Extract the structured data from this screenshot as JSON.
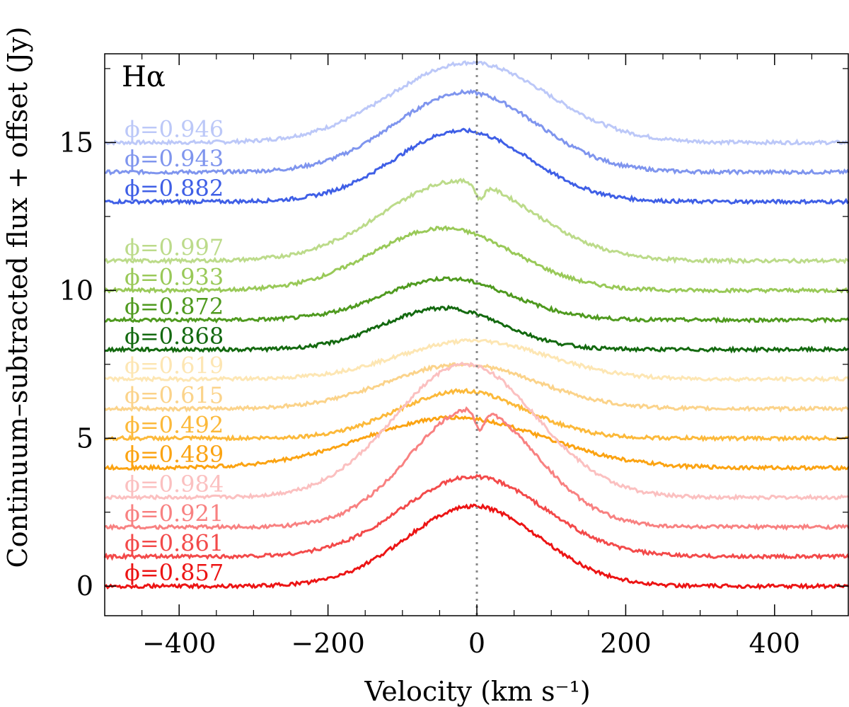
{
  "chart_data": {
    "type": "line",
    "panel_label": "Hα",
    "xlabel": "Velocity (km s⁻¹)",
    "ylabel": "Continuum–subtracted flux + offset (Jy)",
    "xlim": [
      -500,
      500
    ],
    "ylim": [
      -1,
      18
    ],
    "x_ticks": [
      -400,
      -200,
      0,
      200,
      400
    ],
    "x_tick_labels": [
      "−400",
      "−200",
      "0",
      "200",
      "400"
    ],
    "y_ticks": [
      0,
      5,
      10,
      15
    ],
    "y_tick_labels": [
      "0",
      "5",
      "10",
      "15"
    ],
    "reference_line": {
      "x": 0,
      "style": "dotted",
      "color": "#888888"
    },
    "grid": false,
    "series": [
      {
        "label": "ϕ=0.946",
        "color": "#bcc8f8",
        "offset": 15,
        "peak": 2.7,
        "center": -10,
        "sigma": 105,
        "wing": 0.0,
        "dip": 0.0
      },
      {
        "label": "ϕ=0.943",
        "color": "#7f95ee",
        "offset": 14,
        "peak": 2.7,
        "center": -15,
        "sigma": 95,
        "wing": 0.0,
        "dip": 0.0
      },
      {
        "label": "ϕ=0.882",
        "color": "#3f5fe6",
        "offset": 13,
        "peak": 2.4,
        "center": -20,
        "sigma": 90,
        "wing": 0.0,
        "dip": 0.0
      },
      {
        "label": "ϕ=0.997",
        "color": "#bcdb8a",
        "offset": 11,
        "peak": 2.7,
        "center": -25,
        "sigma": 100,
        "wing": 0.0,
        "dip": 0.5
      },
      {
        "label": "ϕ=0.933",
        "color": "#99c958",
        "offset": 10,
        "peak": 2.1,
        "center": -45,
        "sigma": 95,
        "wing": 0.0,
        "dip": 0.0
      },
      {
        "label": "ϕ=0.872",
        "color": "#4f9a1f",
        "offset": 9,
        "peak": 1.4,
        "center": -40,
        "sigma": 85,
        "wing": 0.0,
        "dip": 0.0
      },
      {
        "label": "ϕ=0.868",
        "color": "#13690f",
        "offset": 8,
        "peak": 1.4,
        "center": -45,
        "sigma": 80,
        "wing": 0.0,
        "dip": 0.0
      },
      {
        "label": "ϕ=0.619",
        "color": "#fde6b3",
        "offset": 7,
        "peak": 1.3,
        "center": -5,
        "sigma": 100,
        "wing": 0.0,
        "dip": 0.0
      },
      {
        "label": "ϕ=0.615",
        "color": "#fbd38a",
        "offset": 6,
        "peak": 1.5,
        "center": -20,
        "sigma": 100,
        "wing": 0.0,
        "dip": 0.0
      },
      {
        "label": "ϕ=0.492",
        "color": "#fcb93a",
        "offset": 5,
        "peak": 1.6,
        "center": -20,
        "sigma": 85,
        "wing": 0.0,
        "dip": 0.0
      },
      {
        "label": "ϕ=0.489",
        "color": "#fba312",
        "offset": 4,
        "peak": 1.7,
        "center": -30,
        "sigma": 120,
        "wing": 0.0,
        "dip": 0.0
      },
      {
        "label": "ϕ=0.984",
        "color": "#fbc0c0",
        "offset": 3,
        "peak": 4.5,
        "center": -15,
        "sigma": 95,
        "wing": 0.0,
        "dip": 0.0
      },
      {
        "label": "ϕ=0.921",
        "color": "#f88181",
        "offset": 2,
        "peak": 4.0,
        "center": -5,
        "sigma": 85,
        "wing": 0.0,
        "dip": 0.7
      },
      {
        "label": "ϕ=0.861",
        "color": "#f34a4a",
        "offset": 1,
        "peak": 2.7,
        "center": -5,
        "sigma": 95,
        "wing": 0.0,
        "dip": 0.0
      },
      {
        "label": "ϕ=0.857",
        "color": "#ec1414",
        "offset": 0,
        "peak": 2.7,
        "center": -5,
        "sigma": 90,
        "wing": 0.0,
        "dip": 0.0
      }
    ]
  }
}
